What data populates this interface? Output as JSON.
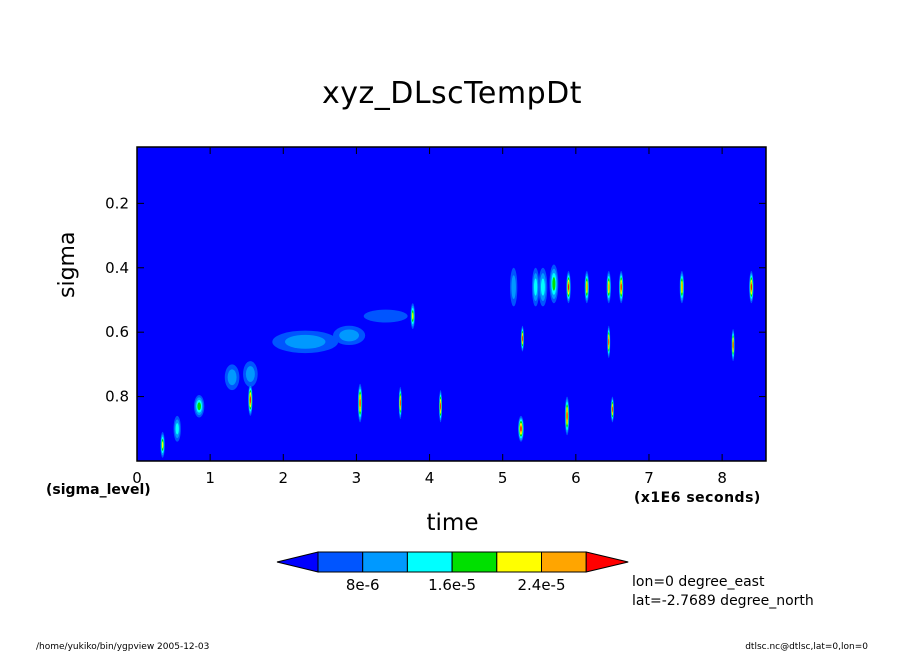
{
  "chart_data": {
    "type": "heatmap",
    "title": "xyz_DLscTempDt",
    "xlabel": "time",
    "ylabel": "sigma",
    "x_unit_note": "(x1E6 seconds)",
    "y_axis_tag": "(sigma_level)",
    "xlim": [
      0,
      8.6
    ],
    "ylim": [
      1.0,
      0.025
    ],
    "x_ticks": [
      0,
      1,
      2,
      3,
      4,
      5,
      6,
      7,
      8
    ],
    "x_tick_labels": [
      "0",
      "1",
      "2",
      "3",
      "4",
      "5",
      "6",
      "7",
      "8"
    ],
    "y_ticks": [
      0.2,
      0.4,
      0.6,
      0.8
    ],
    "y_tick_labels": [
      "0.2",
      "0.4",
      "0.6",
      "0.8"
    ],
    "colorbar": {
      "levels": [
        0,
        4e-06,
        8e-06,
        1.2e-05,
        1.6e-05,
        2e-05,
        2.4e-05,
        2.8e-05
      ],
      "colors": [
        "#0000ff",
        "#0055ff",
        "#0099ff",
        "#00ffff",
        "#00e000",
        "#ffff00",
        "#ffa500",
        "#ff0000"
      ],
      "tick_labels": [
        "8e-6",
        "1.6e-5",
        "2.4e-5"
      ],
      "tick_values": [
        8e-06,
        1.6e-05,
        2.4e-05
      ]
    },
    "background_value": 0,
    "features": [
      {
        "x": 0.85,
        "sigma": 0.83,
        "dx": 0.07,
        "ds": 0.035,
        "value": 1.6e-05
      },
      {
        "x": 1.3,
        "sigma": 0.74,
        "dx": 0.1,
        "ds": 0.04,
        "value": 1e-05
      },
      {
        "x": 1.55,
        "sigma": 0.73,
        "dx": 0.1,
        "ds": 0.04,
        "value": 1e-05
      },
      {
        "x": 2.3,
        "sigma": 0.63,
        "dx": 0.45,
        "ds": 0.035,
        "value": 8e-06
      },
      {
        "x": 2.9,
        "sigma": 0.61,
        "dx": 0.22,
        "ds": 0.03,
        "value": 8e-06
      },
      {
        "x": 3.4,
        "sigma": 0.55,
        "dx": 0.3,
        "ds": 0.02,
        "value": 5e-06
      },
      {
        "x": 3.77,
        "sigma": 0.55,
        "dx": 0.03,
        "ds": 0.04,
        "value": 2e-05
      },
      {
        "x": 5.15,
        "sigma": 0.46,
        "dx": 0.05,
        "ds": 0.06,
        "value": 1e-05
      },
      {
        "x": 5.45,
        "sigma": 0.46,
        "dx": 0.05,
        "ds": 0.06,
        "value": 1.2e-05
      },
      {
        "x": 5.55,
        "sigma": 0.46,
        "dx": 0.06,
        "ds": 0.06,
        "value": 1.4e-05
      },
      {
        "x": 5.7,
        "sigma": 0.45,
        "dx": 0.06,
        "ds": 0.06,
        "value": 1.6e-05
      },
      {
        "x": 5.9,
        "sigma": 0.46,
        "dx": 0.03,
        "ds": 0.05,
        "value": 2.8e-05
      },
      {
        "x": 6.15,
        "sigma": 0.46,
        "dx": 0.03,
        "ds": 0.05,
        "value": 2.4e-05
      },
      {
        "x": 6.45,
        "sigma": 0.46,
        "dx": 0.03,
        "ds": 0.05,
        "value": 2.4e-05
      },
      {
        "x": 6.62,
        "sigma": 0.46,
        "dx": 0.03,
        "ds": 0.05,
        "value": 2.8e-05
      },
      {
        "x": 7.45,
        "sigma": 0.46,
        "dx": 0.03,
        "ds": 0.05,
        "value": 2.4e-05
      },
      {
        "x": 8.4,
        "sigma": 0.46,
        "dx": 0.03,
        "ds": 0.05,
        "value": 2.8e-05
      },
      {
        "x": 0.35,
        "sigma": 0.95,
        "dx": 0.03,
        "ds": 0.04,
        "value": 2e-05
      },
      {
        "x": 0.55,
        "sigma": 0.9,
        "dx": 0.05,
        "ds": 0.04,
        "value": 1.2e-05
      },
      {
        "x": 1.55,
        "sigma": 0.81,
        "dx": 0.03,
        "ds": 0.05,
        "value": 2.8e-05
      },
      {
        "x": 3.05,
        "sigma": 0.82,
        "dx": 0.03,
        "ds": 0.06,
        "value": 2.8e-05
      },
      {
        "x": 3.6,
        "sigma": 0.82,
        "dx": 0.02,
        "ds": 0.05,
        "value": 2.8e-05
      },
      {
        "x": 4.15,
        "sigma": 0.83,
        "dx": 0.02,
        "ds": 0.05,
        "value": 2.8e-05
      },
      {
        "x": 5.25,
        "sigma": 0.9,
        "dx": 0.04,
        "ds": 0.04,
        "value": 2.8e-05
      },
      {
        "x": 5.27,
        "sigma": 0.62,
        "dx": 0.02,
        "ds": 0.04,
        "value": 2.8e-05
      },
      {
        "x": 5.88,
        "sigma": 0.86,
        "dx": 0.03,
        "ds": 0.06,
        "value": 2.8e-05
      },
      {
        "x": 6.45,
        "sigma": 0.63,
        "dx": 0.02,
        "ds": 0.05,
        "value": 2.8e-05
      },
      {
        "x": 6.5,
        "sigma": 0.84,
        "dx": 0.02,
        "ds": 0.04,
        "value": 2.8e-05
      },
      {
        "x": 8.15,
        "sigma": 0.64,
        "dx": 0.02,
        "ds": 0.05,
        "value": 2.8e-05
      }
    ]
  },
  "info": {
    "lon": "lon=0 degree_east",
    "lat": "lat=-2.7689 degree_north"
  },
  "footer": {
    "left": "/home/yukiko/bin/ygpview  2005-12-03",
    "right": "dtlsc.nc@dtlsc,lat=0,lon=0"
  }
}
